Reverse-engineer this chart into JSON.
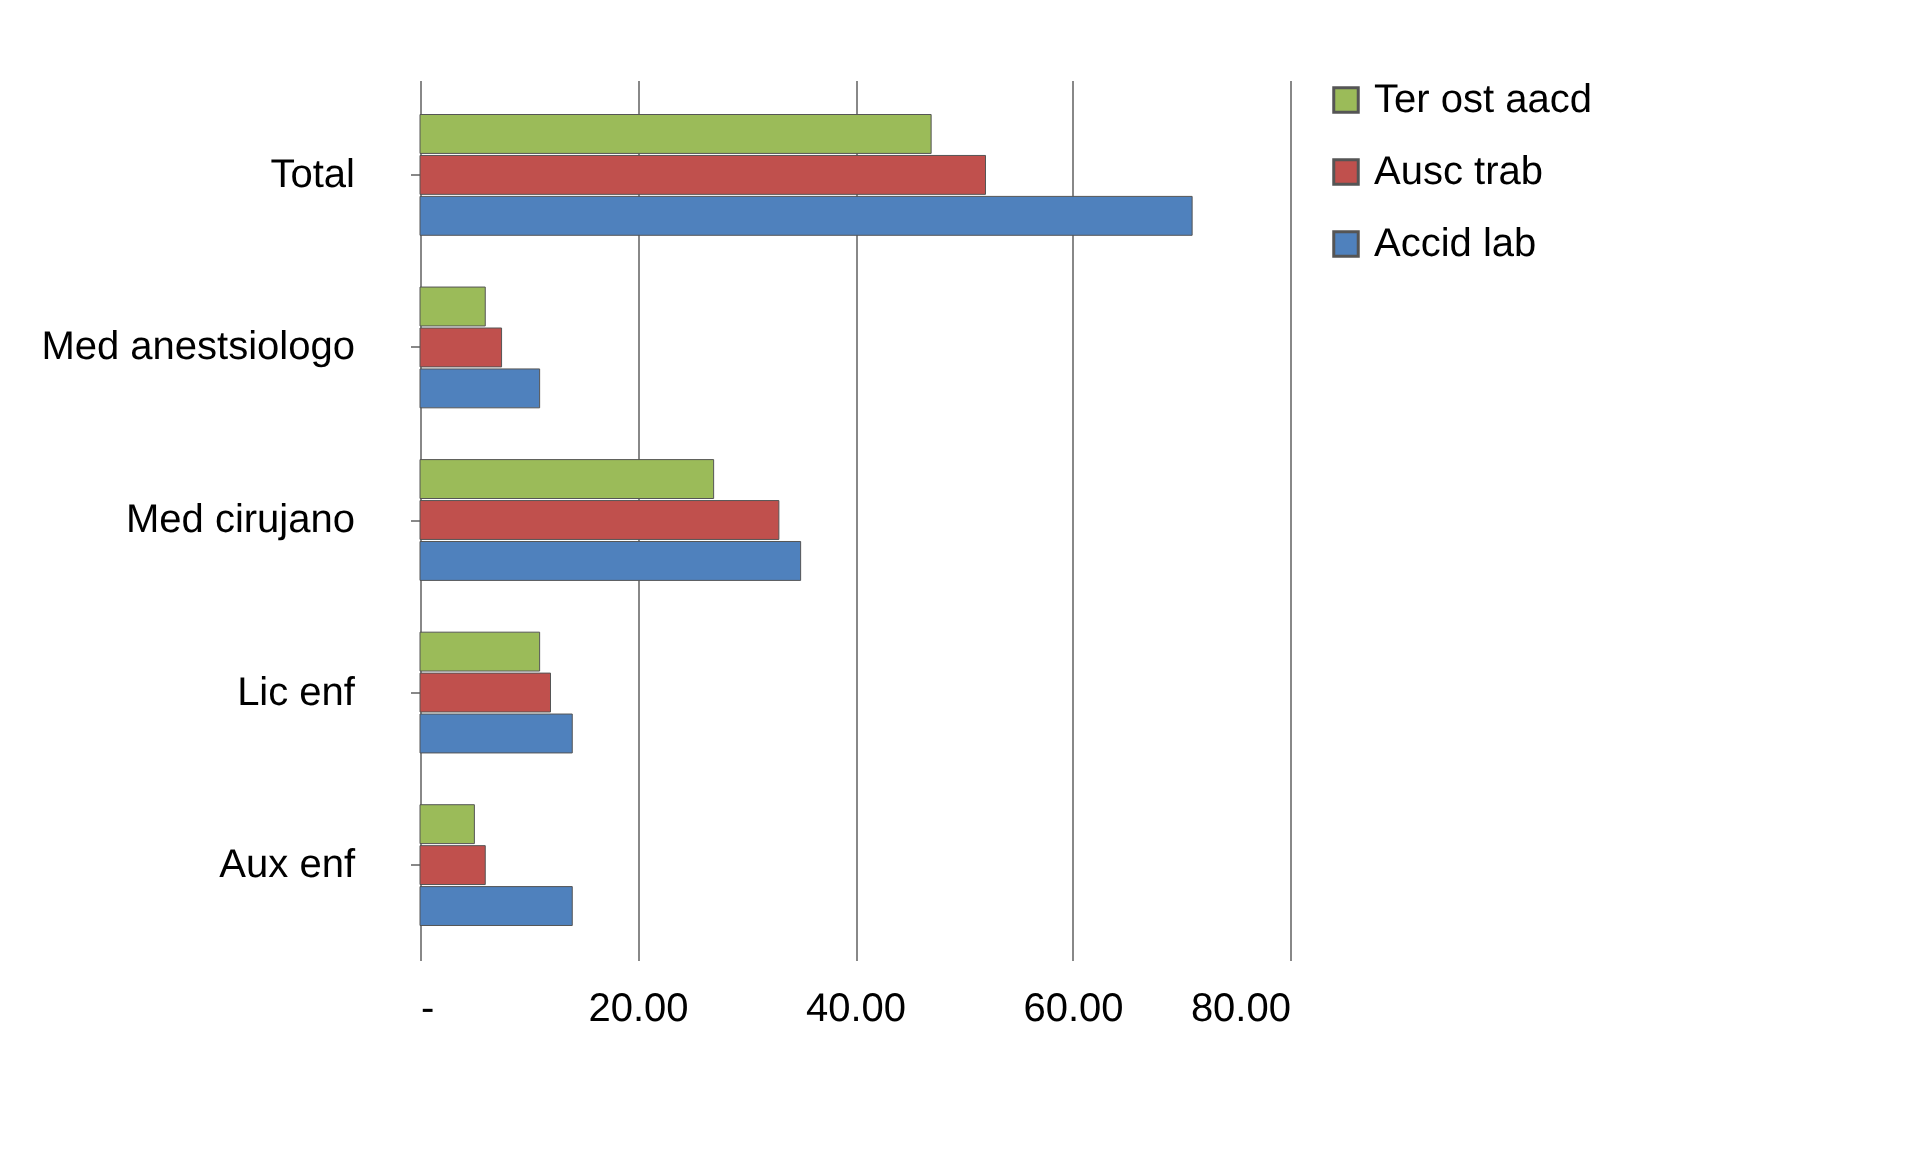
{
  "chart_data": {
    "type": "bar",
    "orientation": "horizontal",
    "categories": [
      "Total",
      "Med anestsiologo",
      "Med cirujano",
      "Lic enf",
      "Aux enf"
    ],
    "series": [
      {
        "name": "Ter ost aacd",
        "color": "#9bbb59",
        "values": [
          47,
          6,
          27,
          11,
          5
        ]
      },
      {
        "name": "Ausc trab",
        "color": "#c0504d",
        "values": [
          52,
          7.5,
          33,
          12,
          6
        ]
      },
      {
        "name": "Accid lab",
        "color": "#4f81bd",
        "values": [
          71,
          11,
          35,
          14,
          14
        ]
      }
    ],
    "xlim": [
      0,
      80
    ],
    "xticks": [
      {
        "value": 0,
        "label": "-"
      },
      {
        "value": 20,
        "label": "20.00"
      },
      {
        "value": 40,
        "label": "40.00"
      },
      {
        "value": 60,
        "label": "60.00"
      },
      {
        "value": 80,
        "label": "80.00"
      }
    ],
    "grid": "x",
    "legend": "right"
  }
}
